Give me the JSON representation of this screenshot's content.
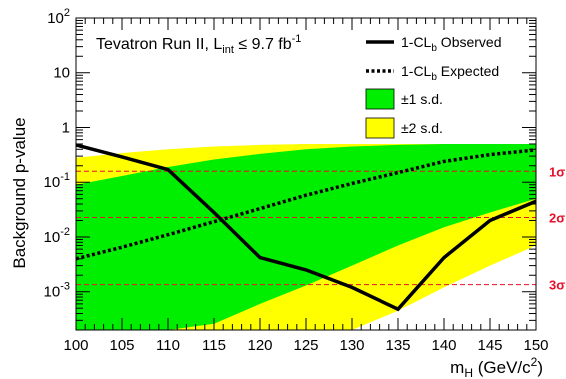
{
  "chart_data": {
    "type": "line",
    "title": {
      "main": "Tevatron Run II, L",
      "sub": "int",
      "rel": " ≤ 9.7 fb",
      "sup": "-1"
    },
    "xlabel": {
      "main": "m",
      "sub": "H",
      "rest": " (GeV/c",
      "sup": "2",
      "end": ")"
    },
    "ylabel": "Background p-value",
    "xlim": [
      100,
      150
    ],
    "ylim": [
      0.0002,
      100
    ],
    "yscale": "log",
    "x_ticks": [
      "100",
      "105",
      "110",
      "115",
      "120",
      "125",
      "130",
      "135",
      "140",
      "145",
      "150"
    ],
    "y_ticks": [
      {
        "base": "10",
        "exp": "-3",
        "value": 0.001
      },
      {
        "base": "10",
        "exp": "-2",
        "value": 0.01
      },
      {
        "base": "10",
        "exp": "-1",
        "value": 0.1
      },
      {
        "base": "1",
        "exp": "",
        "value": 1
      },
      {
        "base": "10",
        "exp": "",
        "value": 10
      },
      {
        "base": "10",
        "exp": "2",
        "value": 100
      }
    ],
    "x": [
      100,
      105,
      110,
      115,
      120,
      125,
      130,
      135,
      140,
      145,
      150
    ],
    "observed": [
      0.48,
      0.29,
      0.17,
      0.028,
      0.0042,
      0.0025,
      0.0012,
      0.00048,
      0.0042,
      0.02,
      0.045
    ],
    "expected": [
      0.004,
      0.0065,
      0.011,
      0.019,
      0.033,
      0.058,
      0.095,
      0.15,
      0.24,
      0.32,
      0.39
    ],
    "band_1sd_upper": [
      0.09,
      0.13,
      0.19,
      0.26,
      0.33,
      0.4,
      0.45,
      0.48,
      0.5,
      0.5,
      0.5
    ],
    "band_1sd_lower": [
      0.00015,
      0.00018,
      0.0002,
      0.00026,
      0.0006,
      0.0013,
      0.003,
      0.007,
      0.015,
      0.028,
      0.05
    ],
    "band_2sd_upper": [
      0.28,
      0.34,
      0.4,
      0.45,
      0.48,
      0.5,
      0.5,
      0.5,
      0.5,
      0.5,
      0.5
    ],
    "band_2sd_lower": [
      0.00015,
      0.00015,
      0.00015,
      0.00015,
      0.00015,
      0.00015,
      0.00018,
      0.00045,
      0.0012,
      0.003,
      0.007
    ],
    "sigma_lines": [
      {
        "label": "1σ",
        "value": 0.1587
      },
      {
        "label": "2σ",
        "value": 0.02275
      },
      {
        "label": "3σ",
        "value": 0.00135
      }
    ],
    "legend": {
      "observed": {
        "main": "1-CL",
        "sub": "b",
        "rest": " Observed"
      },
      "expected": {
        "main": "1-CL",
        "sub": "b",
        "rest": " Expected"
      },
      "band1": "±1 s.d.",
      "band2": "±2 s.d."
    },
    "colors": {
      "band_1sd": "#00ee00",
      "band_2sd": "#ffff00",
      "sigma_lines": "#e8102a",
      "lines": "#000000"
    },
    "legend_position": "top-right",
    "grid": false
  }
}
